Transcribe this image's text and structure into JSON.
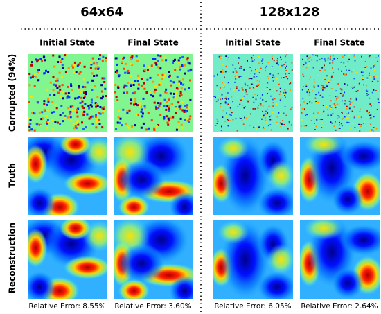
{
  "columns": {
    "titles": [
      "64x64",
      "128x128"
    ],
    "headers": [
      "Initial State",
      "Final State",
      "Initial State",
      "Final State"
    ]
  },
  "rows": [
    "Corrupted (94%)",
    "Truth",
    "Reconstruction"
  ],
  "errors": [
    "Relative Error: 8.55%",
    "Relative Error: 3.60%",
    "Relative Error: 6.05%",
    "Relative Error: 2.64%"
  ]
}
